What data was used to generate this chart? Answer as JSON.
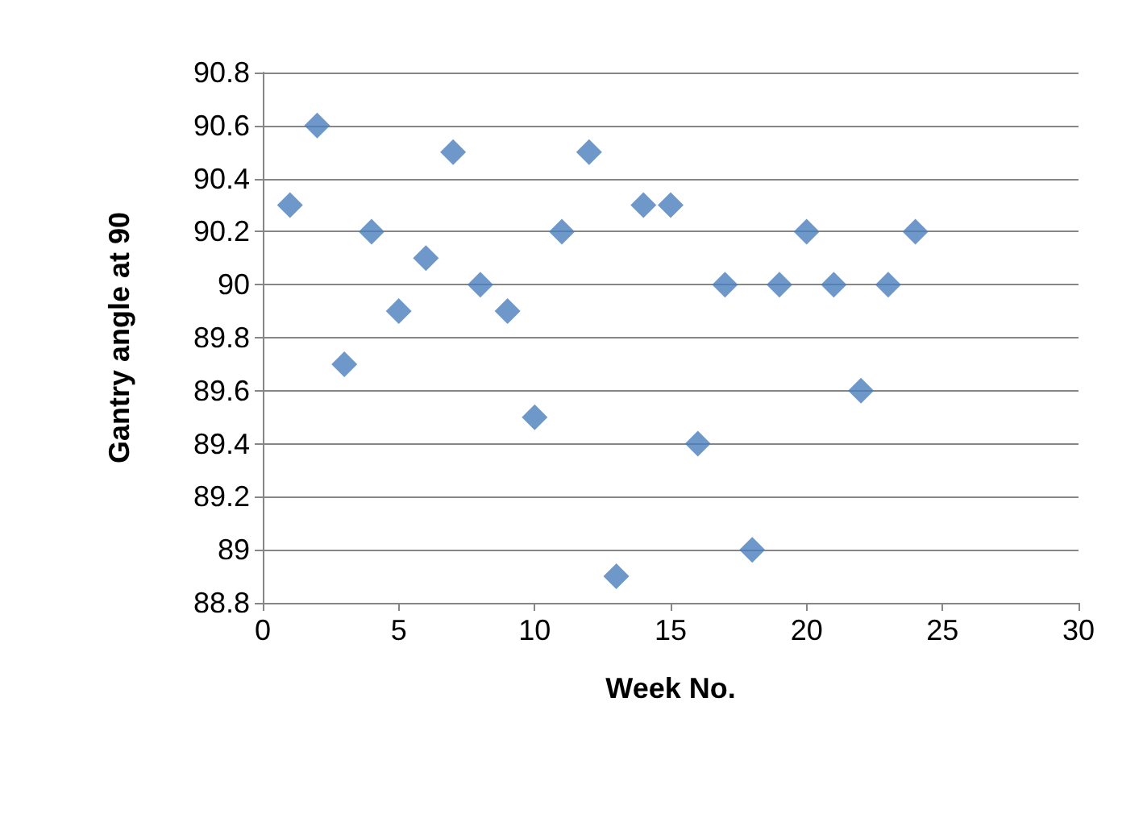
{
  "chart_data": {
    "type": "scatter",
    "xlabel": "Week No.",
    "ylabel": "Gantry angle at 90",
    "x": [
      1,
      2,
      3,
      4,
      5,
      6,
      7,
      8,
      9,
      10,
      11,
      12,
      13,
      14,
      15,
      16,
      17,
      18,
      19,
      20,
      21,
      22,
      23,
      24
    ],
    "values": [
      90.3,
      90.6,
      89.7,
      90.2,
      89.9,
      90.1,
      90.5,
      90.0,
      89.9,
      89.5,
      90.2,
      90.5,
      88.9,
      90.3,
      90.3,
      89.4,
      90.0,
      89.0,
      90.0,
      90.2,
      90.0,
      89.6,
      90.0,
      90.2
    ],
    "color": "#4a7ebb",
    "marker": "diamond",
    "grid": "y",
    "xlim": [
      0,
      30
    ],
    "xticks": [
      0,
      5,
      10,
      15,
      20,
      25,
      30
    ],
    "ylim": [
      88.8,
      90.8
    ],
    "yticks": [
      88.8,
      89,
      89.2,
      89.4,
      89.6,
      89.8,
      90,
      90.2,
      90.4,
      90.6,
      90.8
    ]
  }
}
